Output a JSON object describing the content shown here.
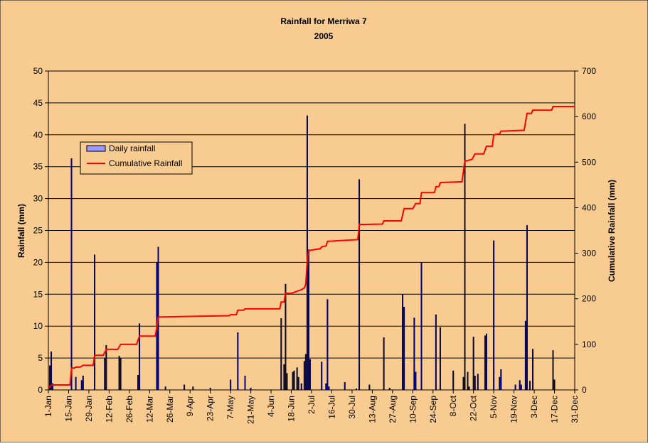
{
  "chart_data": {
    "type": "bar_line_combo",
    "title": "Rainfall for Merriwa 7",
    "subtitle": "2005",
    "y_label": "Rainfall (mm)",
    "y2_label": "Cumulative Rainfall (mm)",
    "xlim": [
      1,
      365
    ],
    "xticks": [
      {
        "value": 1,
        "label": "1-Jan"
      },
      {
        "value": 15,
        "label": "15-Jan"
      },
      {
        "value": 29,
        "label": "29-Jan"
      },
      {
        "value": 43,
        "label": "12-Feb"
      },
      {
        "value": 57,
        "label": "26-Feb"
      },
      {
        "value": 71,
        "label": "12-Mar"
      },
      {
        "value": 85,
        "label": "26-Mar"
      },
      {
        "value": 99,
        "label": "9-Apr"
      },
      {
        "value": 113,
        "label": "23-Apr"
      },
      {
        "value": 127,
        "label": "7-May"
      },
      {
        "value": 141,
        "label": "21-May"
      },
      {
        "value": 155,
        "label": "4-Jun"
      },
      {
        "value": 169,
        "label": "18-Jun"
      },
      {
        "value": 183,
        "label": "2-Jul"
      },
      {
        "value": 197,
        "label": "16-Jul"
      },
      {
        "value": 211,
        "label": "30-Jul"
      },
      {
        "value": 225,
        "label": "13-Aug"
      },
      {
        "value": 239,
        "label": "27-Aug"
      },
      {
        "value": 253,
        "label": "10-Sep"
      },
      {
        "value": 267,
        "label": "24-Sep"
      },
      {
        "value": 281,
        "label": "8-Oct"
      },
      {
        "value": 295,
        "label": "22-Oct"
      },
      {
        "value": 309,
        "label": "5-Nov"
      },
      {
        "value": 323,
        "label": "19-Nov"
      },
      {
        "value": 337,
        "label": "3-Dec"
      },
      {
        "value": 351,
        "label": "17-Dec"
      },
      {
        "value": 365,
        "label": "31-Dec"
      }
    ],
    "ylim": [
      0,
      50
    ],
    "yticks": [
      0,
      5,
      10,
      15,
      20,
      25,
      30,
      35,
      40,
      45,
      50
    ],
    "y2lim": [
      0,
      700
    ],
    "y2ticks": [
      0,
      100,
      200,
      300,
      400,
      500,
      600,
      700
    ],
    "grid": true,
    "legend": "upper left",
    "series": [
      {
        "name": "Daily rainfall",
        "type": "bar",
        "color": "#9999ff",
        "x": [
          2,
          3,
          4,
          17,
          20,
          24,
          25,
          33,
          40,
          41,
          50,
          51,
          63,
          64,
          76,
          77,
          82,
          95,
          101,
          113,
          127,
          132,
          137,
          141,
          162,
          164,
          165,
          166,
          170,
          171,
          173,
          174,
          176,
          178,
          179,
          180,
          181,
          182,
          190,
          193,
          194,
          195,
          206,
          214,
          216,
          223,
          233,
          237,
          246,
          247,
          254,
          255,
          259,
          269,
          272,
          281,
          288,
          289,
          291,
          292,
          295,
          296,
          298,
          303,
          304,
          309,
          313,
          314,
          324,
          327,
          328,
          331,
          332,
          334,
          336,
          350,
          351
        ],
        "values": [
          3.8,
          6,
          1,
          36.3,
          2,
          1.5,
          2.2,
          21.2,
          5,
          7,
          5.3,
          5,
          2.3,
          10.4,
          20,
          22.4,
          0.5,
          0.8,
          0.5,
          0.3,
          1.6,
          9,
          2.2,
          0.3,
          11.2,
          4,
          16.6,
          2.6,
          2.8,
          3,
          3.5,
          2,
          1,
          4.5,
          5.6,
          43,
          22,
          4.8,
          4.4,
          1,
          14.2,
          0.5,
          1.2,
          0.2,
          33,
          0.8,
          8.2,
          0.3,
          15,
          13,
          11.3,
          2.8,
          20,
          11.8,
          9.8,
          3,
          2,
          41.7,
          2.8,
          0.5,
          8.3,
          2.2,
          2.5,
          8.5,
          8.8,
          23.4,
          2,
          3.2,
          0.8,
          1.5,
          0.8,
          10.8,
          25.8,
          1.4,
          6.4,
          6.2,
          1.6
        ]
      },
      {
        "name": "Cumulative Rainfall",
        "type": "line",
        "axis": "y2",
        "color": "#ff0000",
        "x": [
          1,
          3,
          4,
          16,
          17,
          19,
          20,
          23,
          25,
          32,
          33,
          39,
          41,
          49,
          51,
          62,
          64,
          75,
          77,
          126,
          127,
          131,
          132,
          136,
          137,
          161,
          162,
          164,
          165,
          169,
          176,
          178,
          179,
          180,
          181,
          189,
          190,
          193,
          194,
          215,
          216,
          232,
          233,
          245,
          247,
          253,
          255,
          258,
          259,
          268,
          269,
          271,
          272,
          287,
          289,
          294,
          296,
          302,
          304,
          308,
          309,
          313,
          314,
          330,
          332,
          335,
          336,
          349,
          350,
          365
        ],
        "values": [
          4,
          10,
          11,
          11,
          48,
          48,
          50,
          50,
          54,
          54,
          76,
          76,
          89,
          89,
          100,
          100,
          118,
          118,
          160,
          163,
          165,
          165,
          175,
          175,
          178,
          178,
          193,
          193,
          212,
          212,
          220,
          224,
          232,
          282,
          306,
          310,
          314,
          316,
          326,
          330,
          363,
          364,
          371,
          371,
          398,
          398,
          409,
          409,
          433,
          433,
          446,
          446,
          455,
          457,
          502,
          506,
          518,
          518,
          535,
          535,
          560,
          562,
          568,
          570,
          607,
          607,
          614,
          614,
          622,
          622
        ]
      }
    ]
  }
}
